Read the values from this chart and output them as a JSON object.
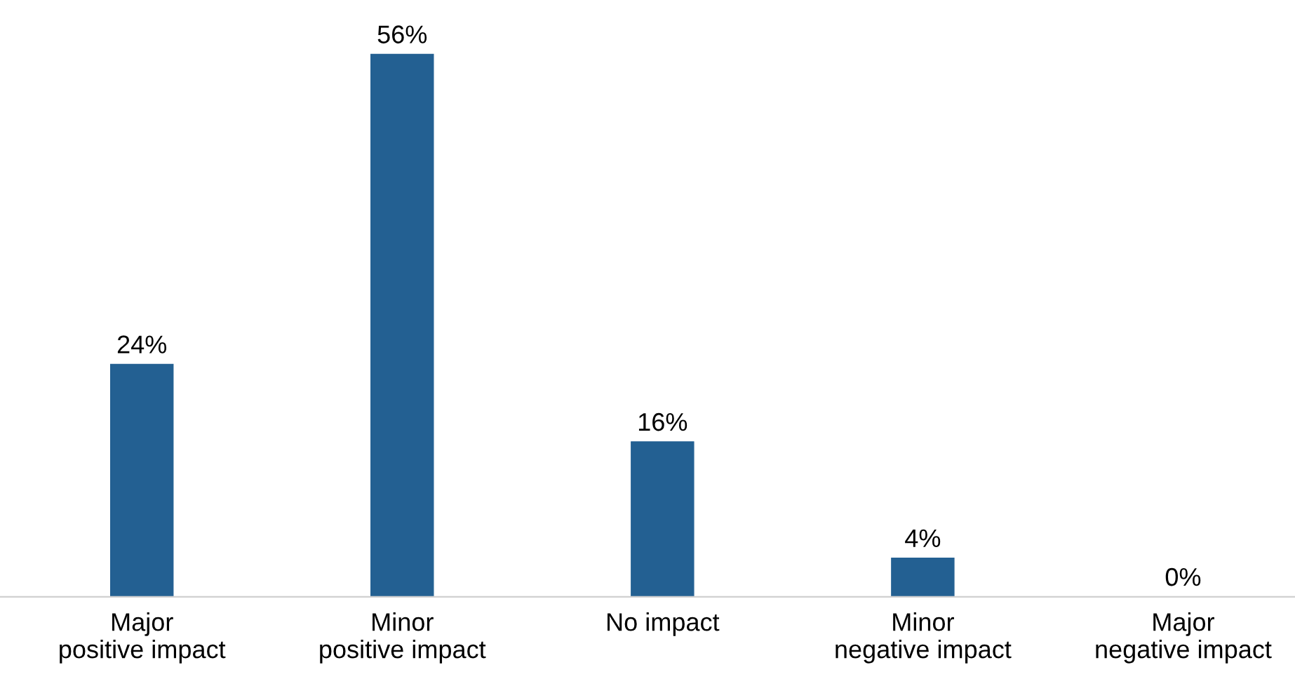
{
  "chart_data": {
    "type": "bar",
    "categories": [
      "Major\npositive impact",
      "Minor\npositive impact",
      "No impact",
      "Minor\nnegative impact",
      "Major\nnegative impact"
    ],
    "values": [
      24,
      56,
      16,
      4,
      0
    ],
    "value_labels": [
      "24%",
      "56%",
      "16%",
      "4%",
      "0%"
    ],
    "color": "#236092",
    "grid": false,
    "legend": false,
    "tick_labels": "x"
  }
}
